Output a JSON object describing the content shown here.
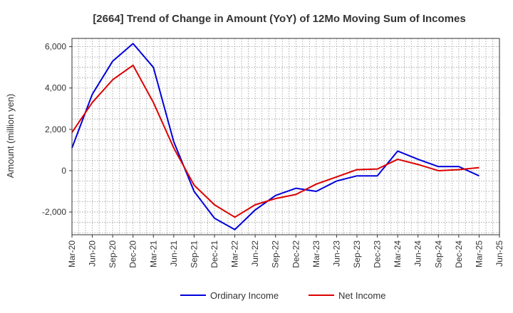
{
  "chart_data": {
    "type": "line",
    "title": "[2664]  Trend of Change in Amount (YoY) of 12Mo Moving Sum of Incomes",
    "xlabel": "",
    "ylabel": "Amount (million yen)",
    "ylim": [
      -3100,
      6400
    ],
    "yticks": [
      -2000,
      0,
      2000,
      4000,
      6000
    ],
    "ytick_labels": [
      "-2,000",
      "0",
      "2,000",
      "4,000",
      "6,000"
    ],
    "grid": true,
    "legend_position": "bottom-center",
    "categories": [
      "Mar-20",
      "Jun-20",
      "Sep-20",
      "Dec-20",
      "Mar-21",
      "Jun-21",
      "Sep-21",
      "Dec-21",
      "Mar-22",
      "Jun-22",
      "Sep-22",
      "Dec-22",
      "Mar-23",
      "Jun-23",
      "Sep-23",
      "Dec-23",
      "Mar-24",
      "Jun-24",
      "Sep-24",
      "Dec-24",
      "Mar-25",
      "Jun-25"
    ],
    "series": [
      {
        "name": "Ordinary Income",
        "color": "#0000dd",
        "values": [
          1100,
          3700,
          5300,
          6150,
          5000,
          1400,
          -1000,
          -2300,
          -2850,
          -1900,
          -1200,
          -850,
          -1000,
          -500,
          -250,
          -250,
          950,
          550,
          200,
          200,
          -250,
          null
        ]
      },
      {
        "name": "Net Income",
        "color": "#dd0000",
        "values": [
          1850,
          3300,
          4400,
          5100,
          3300,
          1100,
          -700,
          -1650,
          -2250,
          -1650,
          -1350,
          -1150,
          -650,
          -300,
          50,
          80,
          550,
          300,
          0,
          50,
          150,
          null
        ]
      }
    ]
  }
}
